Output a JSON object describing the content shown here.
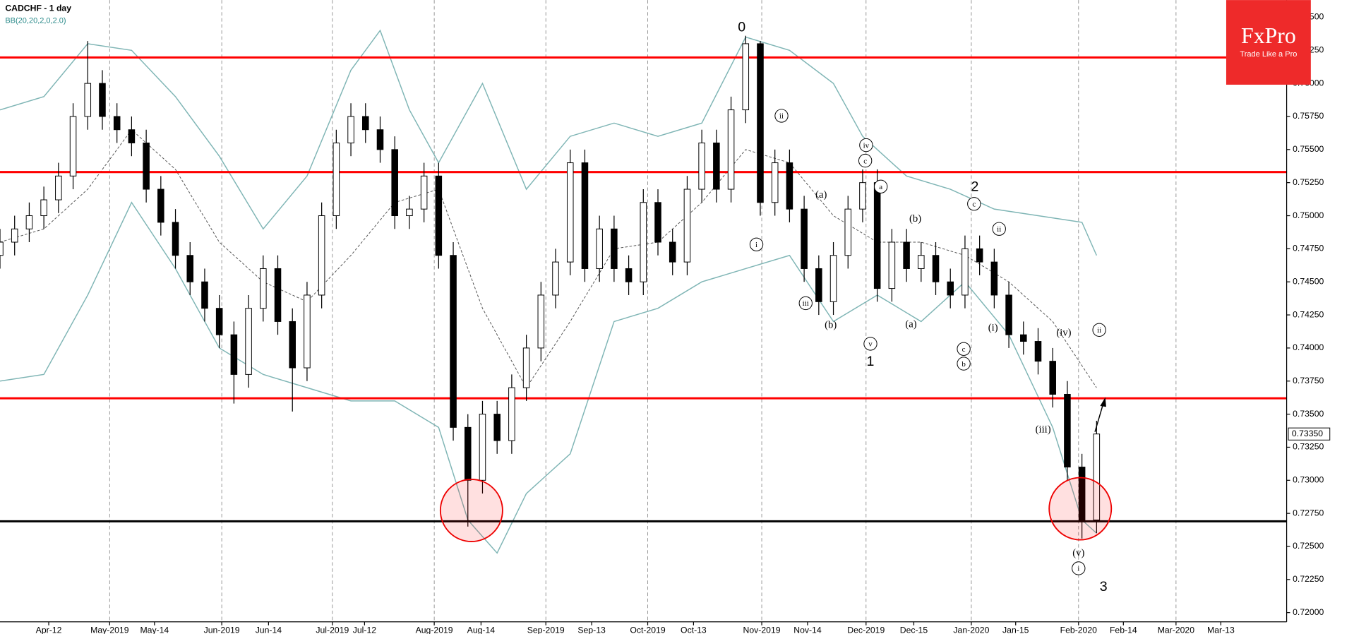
{
  "chart_data": {
    "type": "candlestick",
    "title": "CADCHF - 1 day",
    "subtitle": "BB(20,20,2,0,2.0)",
    "logo": {
      "name": "FxPro",
      "tagline": "Trade Like a Pro"
    },
    "xlim": [
      0,
      264
    ],
    "ylim": [
      0.7193,
      0.7663
    ],
    "xticks": [
      {
        "value": 10,
        "label": "Apr-12"
      },
      {
        "value": 22.5,
        "label": "May-2019"
      },
      {
        "value": 31.7,
        "label": "May-14"
      },
      {
        "value": 45.5,
        "label": "Jun-2019"
      },
      {
        "value": 55.1,
        "label": "Jun-14"
      },
      {
        "value": 68.2,
        "label": "Jul-2019"
      },
      {
        "value": 74.8,
        "label": "Jul-12"
      },
      {
        "value": 89.1,
        "label": "Aug-2019"
      },
      {
        "value": 98.7,
        "label": "Aug-14"
      },
      {
        "value": 112,
        "label": "Sep-2019"
      },
      {
        "value": 121.4,
        "label": "Sep-13"
      },
      {
        "value": 132.9,
        "label": "Oct-2019"
      },
      {
        "value": 142.3,
        "label": "Oct-13"
      },
      {
        "value": 156.3,
        "label": "Nov-2019"
      },
      {
        "value": 165.7,
        "label": "Nov-14"
      },
      {
        "value": 177.7,
        "label": "Dec-2019"
      },
      {
        "value": 187.5,
        "label": "Dec-15"
      },
      {
        "value": 199.3,
        "label": "Jan-2020"
      },
      {
        "value": 208.4,
        "label": "Jan-15"
      },
      {
        "value": 221.3,
        "label": "Feb-2020"
      },
      {
        "value": 230.5,
        "label": "Feb-14"
      },
      {
        "value": 241.3,
        "label": "Mar-2020"
      },
      {
        "value": 250.5,
        "label": "Mar-13"
      }
    ],
    "yticks": [
      {
        "value": 0.765,
        "label": "0.76500"
      },
      {
        "value": 0.7625,
        "label": "0.76250"
      },
      {
        "value": 0.76,
        "label": "0.76000"
      },
      {
        "value": 0.7575,
        "label": "0.75750"
      },
      {
        "value": 0.755,
        "label": "0.75500"
      },
      {
        "value": 0.7525,
        "label": "0.75250"
      },
      {
        "value": 0.75,
        "label": "0.75000"
      },
      {
        "value": 0.7475,
        "label": "0.74750"
      },
      {
        "value": 0.745,
        "label": "0.74500"
      },
      {
        "value": 0.7425,
        "label": "0.74250"
      },
      {
        "value": 0.74,
        "label": "0.74000"
      },
      {
        "value": 0.7375,
        "label": "0.73750"
      },
      {
        "value": 0.735,
        "label": "0.73500"
      },
      {
        "value": 0.7325,
        "label": "0.73250"
      },
      {
        "value": 0.73,
        "label": "0.73000"
      },
      {
        "value": 0.7275,
        "label": "0.72750"
      },
      {
        "value": 0.725,
        "label": "0.72500"
      },
      {
        "value": 0.7225,
        "label": "0.72250"
      },
      {
        "value": 0.72,
        "label": "0.72000"
      }
    ],
    "last_price": {
      "value": 0.7335,
      "label": "0.73350"
    },
    "candles": {
      "x": [
        0,
        3,
        6,
        9,
        12,
        15,
        18,
        21,
        24,
        27,
        30,
        33,
        36,
        39,
        42,
        45,
        48,
        51,
        54,
        57,
        60,
        63,
        66,
        69,
        72,
        75,
        78,
        81,
        84,
        87,
        90,
        93,
        96,
        99,
        102,
        105,
        108,
        111,
        114,
        117,
        120,
        123,
        126,
        129,
        132,
        135,
        138,
        141,
        144,
        147,
        150,
        153,
        156,
        159,
        162,
        165,
        168,
        171,
        174,
        177,
        180,
        183,
        186,
        189,
        192,
        195,
        198,
        201,
        204,
        207,
        210,
        213,
        216,
        219,
        222,
        225
      ],
      "open": [
        0.747,
        0.748,
        0.749,
        0.75,
        0.7512,
        0.753,
        0.7575,
        0.76,
        0.7575,
        0.7565,
        0.7555,
        0.752,
        0.7495,
        0.747,
        0.745,
        0.743,
        0.741,
        0.738,
        0.743,
        0.746,
        0.742,
        0.7385,
        0.744,
        0.75,
        0.7555,
        0.7575,
        0.7565,
        0.755,
        0.75,
        0.7505,
        0.753,
        0.747,
        0.734,
        0.73,
        0.735,
        0.733,
        0.737,
        0.74,
        0.744,
        0.7465,
        0.754,
        0.746,
        0.749,
        0.746,
        0.745,
        0.751,
        0.748,
        0.7465,
        0.752,
        0.7555,
        0.752,
        0.758,
        0.763,
        0.751,
        0.754,
        0.7505,
        0.746,
        0.7435,
        0.747,
        0.7505,
        0.7525,
        0.7445,
        0.748,
        0.746,
        0.747,
        0.745,
        0.744,
        0.7475,
        0.7465,
        0.744,
        0.741,
        0.7405,
        0.739,
        0.7365,
        0.731,
        0.727
      ],
      "high": [
        0.749,
        0.75,
        0.751,
        0.7522,
        0.754,
        0.7585,
        0.7632,
        0.761,
        0.7585,
        0.7575,
        0.7565,
        0.753,
        0.7505,
        0.748,
        0.746,
        0.744,
        0.742,
        0.744,
        0.747,
        0.747,
        0.743,
        0.745,
        0.751,
        0.7565,
        0.7585,
        0.7585,
        0.7575,
        0.756,
        0.7515,
        0.754,
        0.754,
        0.748,
        0.735,
        0.736,
        0.736,
        0.738,
        0.741,
        0.745,
        0.7475,
        0.755,
        0.755,
        0.75,
        0.75,
        0.747,
        0.752,
        0.752,
        0.749,
        0.753,
        0.7565,
        0.7565,
        0.759,
        0.7636,
        0.7632,
        0.755,
        0.755,
        0.7515,
        0.747,
        0.748,
        0.7515,
        0.7535,
        0.7535,
        0.749,
        0.749,
        0.748,
        0.748,
        0.746,
        0.7485,
        0.7485,
        0.7475,
        0.745,
        0.742,
        0.7415,
        0.74,
        0.7375,
        0.732,
        0.7345
      ],
      "low": [
        0.746,
        0.747,
        0.748,
        0.749,
        0.7502,
        0.752,
        0.7565,
        0.7565,
        0.7555,
        0.7545,
        0.751,
        0.7485,
        0.746,
        0.744,
        0.742,
        0.74,
        0.7358,
        0.737,
        0.742,
        0.741,
        0.7352,
        0.7375,
        0.743,
        0.749,
        0.7545,
        0.7555,
        0.754,
        0.749,
        0.749,
        0.7495,
        0.746,
        0.733,
        0.7265,
        0.729,
        0.732,
        0.732,
        0.736,
        0.739,
        0.743,
        0.7455,
        0.745,
        0.745,
        0.745,
        0.744,
        0.744,
        0.747,
        0.7455,
        0.7455,
        0.751,
        0.751,
        0.751,
        0.757,
        0.75,
        0.75,
        0.7495,
        0.745,
        0.7425,
        0.7425,
        0.746,
        0.7495,
        0.7435,
        0.7435,
        0.745,
        0.745,
        0.744,
        0.743,
        0.743,
        0.7455,
        0.743,
        0.74,
        0.7395,
        0.738,
        0.7355,
        0.73,
        0.7256,
        0.726
      ],
      "close": [
        0.748,
        0.749,
        0.75,
        0.7512,
        0.753,
        0.7575,
        0.76,
        0.7575,
        0.7565,
        0.7555,
        0.752,
        0.7495,
        0.747,
        0.745,
        0.743,
        0.741,
        0.738,
        0.743,
        0.746,
        0.742,
        0.7385,
        0.744,
        0.75,
        0.7555,
        0.7575,
        0.7565,
        0.755,
        0.75,
        0.7505,
        0.753,
        0.747,
        0.734,
        0.73,
        0.735,
        0.733,
        0.737,
        0.74,
        0.744,
        0.7465,
        0.754,
        0.746,
        0.749,
        0.746,
        0.745,
        0.751,
        0.748,
        0.7465,
        0.752,
        0.7555,
        0.752,
        0.758,
        0.763,
        0.751,
        0.754,
        0.7505,
        0.746,
        0.7435,
        0.747,
        0.7505,
        0.7525,
        0.7445,
        0.748,
        0.746,
        0.747,
        0.745,
        0.744,
        0.7475,
        0.7465,
        0.744,
        0.741,
        0.7405,
        0.739,
        0.7365,
        0.731,
        0.727,
        0.7335
      ]
    },
    "bands": [
      {
        "color": "#7fb5b5",
        "dash": false,
        "x": [
          0,
          9,
          18,
          27,
          36,
          45,
          54,
          63,
          72,
          78,
          84,
          90,
          99,
          108,
          117,
          126,
          135,
          144,
          153,
          162,
          171,
          177,
          186,
          195,
          204,
          213,
          222,
          225
        ],
        "values": [
          0.758,
          0.759,
          0.763,
          0.7625,
          0.759,
          0.7545,
          0.749,
          0.753,
          0.761,
          0.764,
          0.758,
          0.754,
          0.76,
          0.752,
          0.756,
          0.757,
          0.756,
          0.757,
          0.7635,
          0.7625,
          0.76,
          0.756,
          0.753,
          0.752,
          0.7505,
          0.75,
          0.7495,
          0.747
        ]
      },
      {
        "color": "#555555",
        "dash": true,
        "x": [
          0,
          9,
          18,
          27,
          36,
          45,
          54,
          63,
          72,
          81,
          90,
          99,
          108,
          117,
          126,
          135,
          144,
          153,
          162,
          171,
          180,
          189,
          198,
          207,
          216,
          225
        ],
        "values": [
          0.748,
          0.749,
          0.752,
          0.7565,
          0.7535,
          0.748,
          0.745,
          0.7435,
          0.747,
          0.751,
          0.752,
          0.743,
          0.737,
          0.742,
          0.7475,
          0.748,
          0.751,
          0.755,
          0.754,
          0.75,
          0.748,
          0.748,
          0.747,
          0.745,
          0.742,
          0.737
        ]
      },
      {
        "color": "#7fb5b5",
        "dash": false,
        "x": [
          0,
          9,
          18,
          27,
          36,
          45,
          54,
          63,
          72,
          81,
          90,
          96,
          102,
          108,
          117,
          126,
          135,
          144,
          153,
          162,
          171,
          180,
          189,
          198,
          207,
          216,
          222,
          225
        ],
        "values": [
          0.7375,
          0.738,
          0.744,
          0.751,
          0.746,
          0.74,
          0.738,
          0.737,
          0.736,
          0.736,
          0.734,
          0.727,
          0.7245,
          0.729,
          0.732,
          0.742,
          0.743,
          0.745,
          0.746,
          0.747,
          0.742,
          0.744,
          0.742,
          0.745,
          0.741,
          0.734,
          0.727,
          0.726
        ]
      }
    ],
    "levels": [
      {
        "value": 0.76196,
        "color": "#ff0000"
      },
      {
        "value": 0.7533,
        "color": "#ff0000"
      },
      {
        "value": 0.7362,
        "color": "#ff0000"
      },
      {
        "value": 0.7269,
        "color": "#000000"
      }
    ],
    "annotations": [
      "0",
      "ii",
      "i",
      "iv",
      "c",
      "(a)",
      "a",
      "(b)",
      "iii",
      "(b)",
      "v",
      "1",
      "(a)",
      "c",
      "b",
      "2",
      "c",
      "ii",
      "(i)",
      "(iii)",
      "(iv)",
      "ii",
      "(v)",
      "i",
      "3"
    ]
  }
}
